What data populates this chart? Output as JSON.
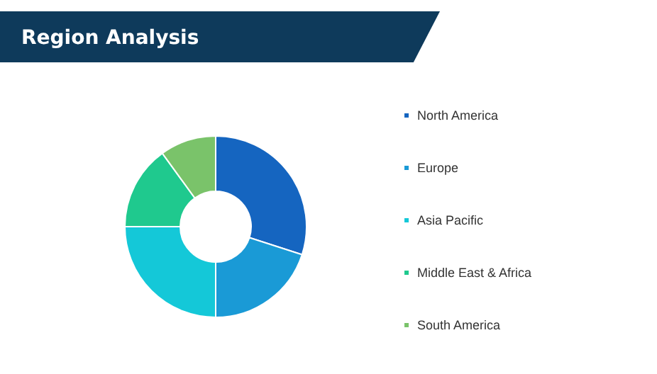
{
  "chart_data": {
    "type": "donut",
    "title": "Region Analysis",
    "categories": [
      "North America",
      "Europe",
      "Asia Pacific",
      "Middle East & Africa",
      "South America"
    ],
    "values": [
      30,
      20,
      25,
      15,
      10
    ],
    "colors": [
      "#1565c0",
      "#1a9ad6",
      "#14c8d8",
      "#1fc98e",
      "#7ac36a"
    ],
    "legend": "right"
  }
}
